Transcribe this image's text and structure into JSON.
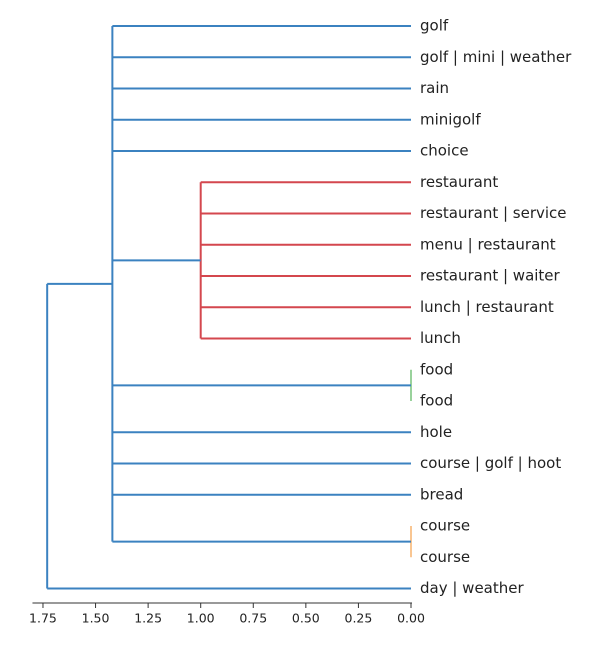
{
  "chart_data": {
    "type": "dendrogram",
    "orientation": "left",
    "x_axis": {
      "limits": [
        1.8,
        0.0
      ],
      "ticks": [
        1.75,
        1.5,
        1.25,
        1.0,
        0.75,
        0.5,
        0.25,
        0.0
      ],
      "tick_labels": [
        "1.75",
        "1.50",
        "1.25",
        "1.00",
        "0.75",
        "0.50",
        "0.25",
        "0.00"
      ]
    },
    "leaves": [
      "golf",
      "golf | mini | weather",
      "rain",
      "minigolf",
      "choice",
      "restaurant",
      "restaurant | service",
      "menu | restaurant",
      "restaurant | waiter",
      "lunch | restaurant",
      "lunch",
      "food",
      "food",
      "hole",
      "course | golf | hoot",
      "bread",
      "course",
      "course",
      "day | weather"
    ],
    "colors": {
      "blue": "#3b82c0",
      "red": "#d4474e",
      "green": "#55b35a",
      "orange": "#f5a14a",
      "axis": "#333333"
    },
    "clusters": [
      {
        "name": "red-cluster",
        "color": "red",
        "members": [
          5,
          6,
          7,
          8,
          9,
          10
        ],
        "height": 1.0
      },
      {
        "name": "green-cluster",
        "color": "green",
        "members": [
          11,
          12
        ],
        "height": 0.0
      },
      {
        "name": "orange-cluster",
        "color": "orange",
        "members": [
          16,
          17
        ],
        "height": 0.0
      },
      {
        "name": "main-cluster",
        "color": "blue",
        "height": 1.42,
        "children": [
          "leaf:0",
          "leaf:1",
          "leaf:2",
          "leaf:3",
          "leaf:4",
          "red-cluster",
          "green-cluster",
          "leaf:13",
          "leaf:14",
          "leaf:15",
          "orange-cluster"
        ]
      },
      {
        "name": "root",
        "color": "blue",
        "height": 1.73,
        "children": [
          "main-cluster",
          "leaf:18"
        ]
      }
    ]
  }
}
